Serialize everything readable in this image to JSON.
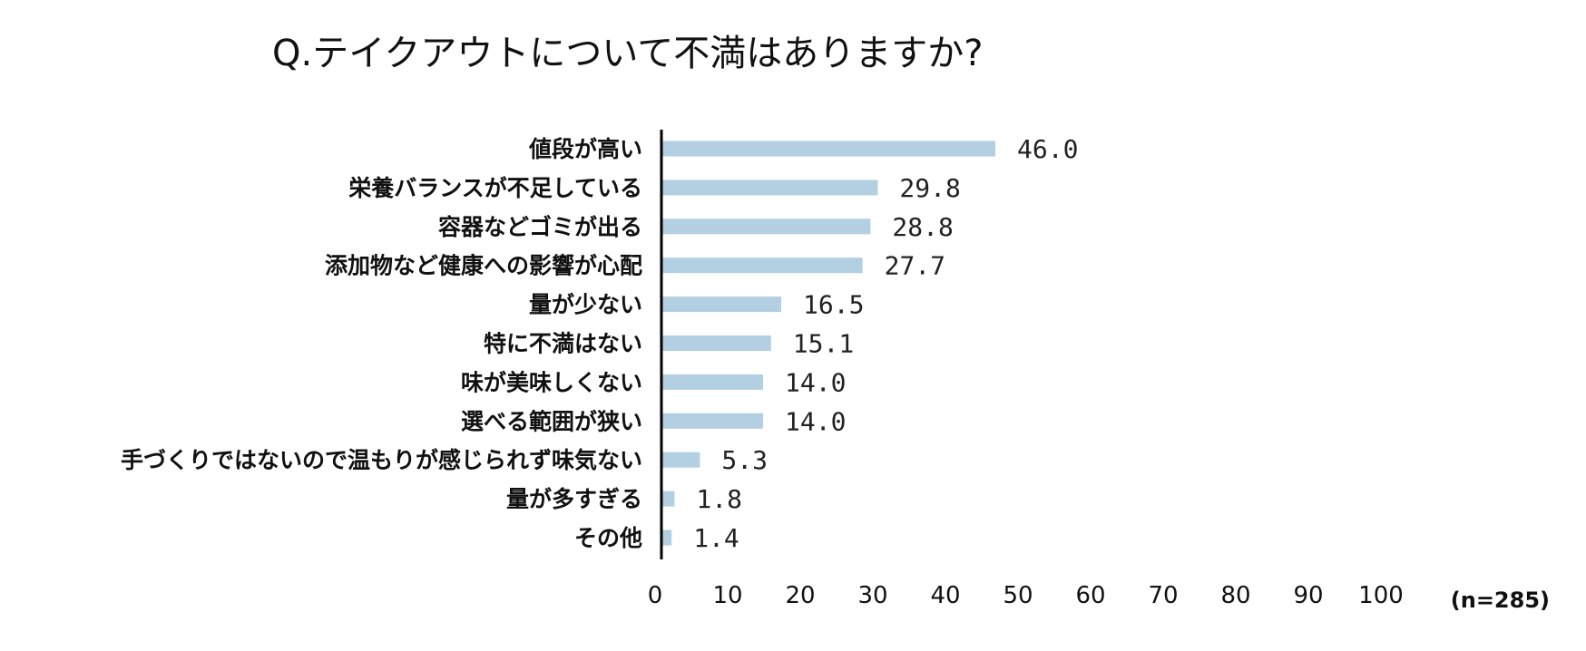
{
  "chart_data": {
    "type": "bar",
    "orientation": "horizontal",
    "title": "Q.テイクアウトについて不満はありますか?",
    "categories": [
      "値段が高い",
      "栄養バランスが不足している",
      "容器などゴミが出る",
      "添加物など健康への影響が心配",
      "量が少ない",
      "特に不満はない",
      "味が美味しくない",
      "選べる範囲が狭い",
      "手づくりではないので温もりが感じられず味気ない",
      "量が多すぎる",
      "その他"
    ],
    "values": [
      46.0,
      29.8,
      28.8,
      27.7,
      16.5,
      15.1,
      14.0,
      14.0,
      5.3,
      1.8,
      1.4
    ],
    "value_labels": [
      "46.0",
      "29.8",
      "28.8",
      "27.7",
      "16.5",
      "15.1",
      "14.0",
      "14.0",
      "5.3",
      "1.8",
      "1.4"
    ],
    "xlim": [
      0,
      100
    ],
    "xticks": [
      0,
      10,
      20,
      30,
      40,
      50,
      60,
      70,
      80,
      90,
      100
    ],
    "xtick_labels": [
      "0",
      "10",
      "20",
      "30",
      "40",
      "50",
      "60",
      "70",
      "80",
      "90",
      "100"
    ],
    "sample_note": "(n=285)",
    "grid": false,
    "bar_color": "#b3cfe2",
    "axis_color": "#000000"
  }
}
